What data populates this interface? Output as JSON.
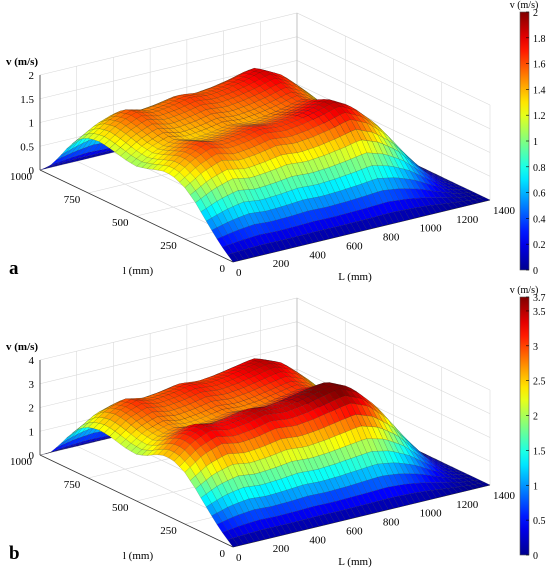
{
  "colors": {
    "colormap": [
      "#00008f",
      "#0000ff",
      "#0080ff",
      "#00ffff",
      "#80ff80",
      "#ffff00",
      "#ff8000",
      "#ff0000",
      "#800000"
    ],
    "mesh": "#1a1a1a",
    "grid": "#d9d9d9"
  },
  "chart_data": [
    {
      "type": "surface",
      "panel_label": "a",
      "title": "",
      "xlabel": "L (mm)",
      "ylabel": "l (mm)",
      "zlabel": "v (m/s)",
      "colorbar_label": "v (m/s)",
      "xlim": [
        0,
        1400
      ],
      "ylim": [
        0,
        1000
      ],
      "zlim": [
        0,
        2
      ],
      "x_ticks": [
        "0",
        "200",
        "400",
        "600",
        "800",
        "1000",
        "1200",
        "1400"
      ],
      "y_ticks": [
        "0",
        "250",
        "500",
        "750",
        "1000"
      ],
      "z_ticks": [
        "0",
        "0.5",
        "1",
        "1.5",
        "2"
      ],
      "colorbar_range": [
        0,
        2
      ],
      "colorbar_ticks": [
        "0",
        "0.2",
        "0.4",
        "0.6",
        "0.8",
        "1",
        "1.2",
        "1.4",
        "1.6",
        "1.8",
        "2"
      ],
      "grid": true,
      "surface": {
        "profile_along_l": {
          "l": [
            0,
            50,
            100,
            150,
            200,
            250,
            300,
            350,
            400,
            450,
            500,
            550,
            600,
            650,
            700,
            750,
            800,
            850,
            900,
            950,
            1000
          ],
          "v": [
            0,
            0.25,
            0.55,
            0.9,
            1.25,
            1.5,
            1.65,
            1.7,
            1.62,
            1.52,
            1.45,
            1.48,
            1.55,
            1.62,
            1.66,
            1.6,
            1.45,
            1.1,
            0.65,
            0.25,
            0
          ]
        },
        "profile_along_L": {
          "L": [
            0,
            100,
            200,
            300,
            400,
            500,
            600,
            700,
            800,
            900,
            1000,
            1100,
            1200,
            1300,
            1400
          ],
          "scale": [
            0.72,
            0.88,
            0.98,
            0.92,
            0.95,
            1.0,
            0.97,
            1.0,
            1.05,
            1.12,
            1.0,
            0.78,
            0.45,
            0.15,
            0
          ]
        },
        "v_max": 1.95
      }
    },
    {
      "type": "surface",
      "panel_label": "b",
      "title": "",
      "xlabel": "L (mm)",
      "ylabel": "l (mm)",
      "zlabel": "v (m/s)",
      "colorbar_label": "v (m/s)",
      "xlim": [
        0,
        1400
      ],
      "ylim": [
        0,
        1000
      ],
      "zlim": [
        0,
        4
      ],
      "x_ticks": [
        "0",
        "200",
        "400",
        "600",
        "800",
        "1000",
        "1200",
        "1400"
      ],
      "y_ticks": [
        "0",
        "250",
        "500",
        "750",
        "1000"
      ],
      "z_ticks": [
        "0",
        "1",
        "2",
        "3",
        "4"
      ],
      "colorbar_range": [
        0,
        3.7
      ],
      "colorbar_ticks": [
        "0",
        "0.5",
        "1",
        "1.5",
        "2",
        "2.5",
        "3",
        "3.5",
        "3.7"
      ],
      "grid": true,
      "surface": {
        "profile_along_l": {
          "l": [
            0,
            50,
            100,
            150,
            200,
            250,
            300,
            350,
            400,
            450,
            500,
            550,
            600,
            650,
            700,
            750,
            800,
            850,
            900,
            950,
            1000
          ],
          "v": [
            0,
            0.5,
            1.1,
            1.8,
            2.5,
            3.1,
            3.45,
            3.55,
            3.35,
            3.0,
            2.8,
            2.85,
            3.0,
            3.15,
            3.2,
            3.05,
            2.7,
            2.0,
            1.15,
            0.4,
            0
          ]
        },
        "profile_along_L": {
          "L": [
            0,
            100,
            200,
            300,
            400,
            500,
            600,
            700,
            800,
            900,
            1000,
            1100,
            1200,
            1300,
            1400
          ],
          "scale": [
            0.7,
            0.88,
            0.97,
            0.92,
            0.95,
            1.0,
            0.97,
            1.0,
            1.05,
            1.1,
            1.0,
            0.78,
            0.45,
            0.15,
            0
          ]
        },
        "v_max": 3.7
      }
    }
  ]
}
